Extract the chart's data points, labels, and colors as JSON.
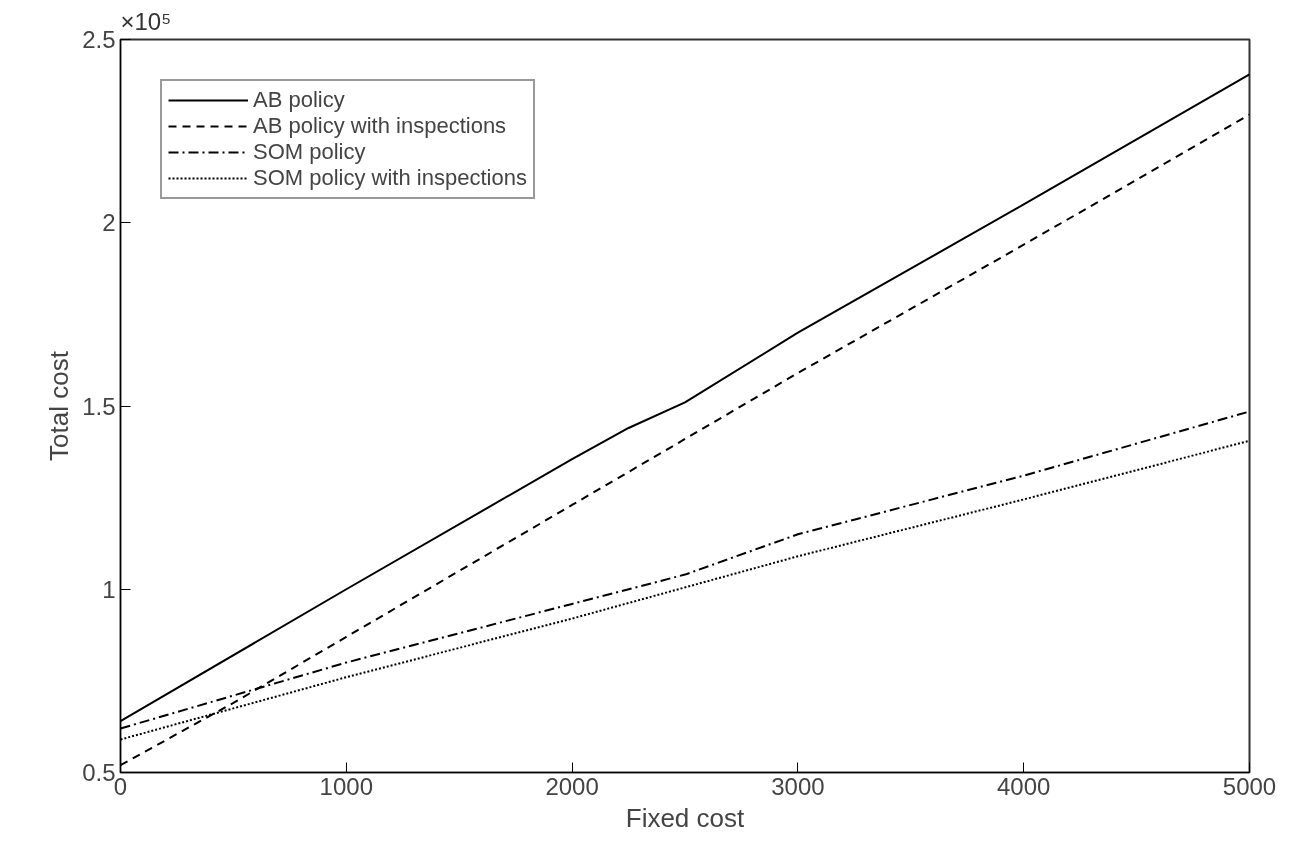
{
  "chart_data": {
    "type": "line",
    "xlabel": "Fixed cost",
    "ylabel": "Total cost",
    "annotations": [
      "×10⁵"
    ],
    "xlim": [
      0,
      5000
    ],
    "xticks": [
      0,
      1000,
      2000,
      3000,
      4000,
      5000
    ],
    "ylim": [
      0.5,
      2.5
    ],
    "yticks": [
      0.5,
      1,
      1.5,
      2,
      2.5
    ],
    "grid": false,
    "legend": "top left",
    "marker": "none",
    "series": [
      {
        "name": "AB policy",
        "color": "#000000",
        "line_style": "solid",
        "x": [
          0,
          1000,
          2000,
          2250,
          2500,
          3000,
          4000,
          5000
        ],
        "values": [
          0.64,
          1.0,
          1.355,
          1.44,
          1.51,
          1.7,
          2.05,
          2.405
        ]
      },
      {
        "name": "AB policy with inspections",
        "color": "#000000",
        "line_style": "dashed",
        "x": [
          0,
          500,
          1000,
          2000,
          3000,
          4000,
          5000
        ],
        "values": [
          0.52,
          0.69,
          0.87,
          1.23,
          1.59,
          1.94,
          2.295
        ]
      },
      {
        "name": "SOM policy",
        "color": "#000000",
        "line_style": "dashdot",
        "x": [
          0,
          1000,
          2000,
          2500,
          3000,
          4000,
          5000
        ],
        "values": [
          0.62,
          0.8,
          0.96,
          1.04,
          1.15,
          1.31,
          1.485
        ]
      },
      {
        "name": "SOM policy with inspections",
        "color": "#000000",
        "line_style": "dotted",
        "x": [
          0,
          1000,
          2000,
          3000,
          4000,
          5000
        ],
        "values": [
          0.59,
          0.76,
          0.92,
          1.09,
          1.245,
          1.405
        ]
      }
    ]
  }
}
